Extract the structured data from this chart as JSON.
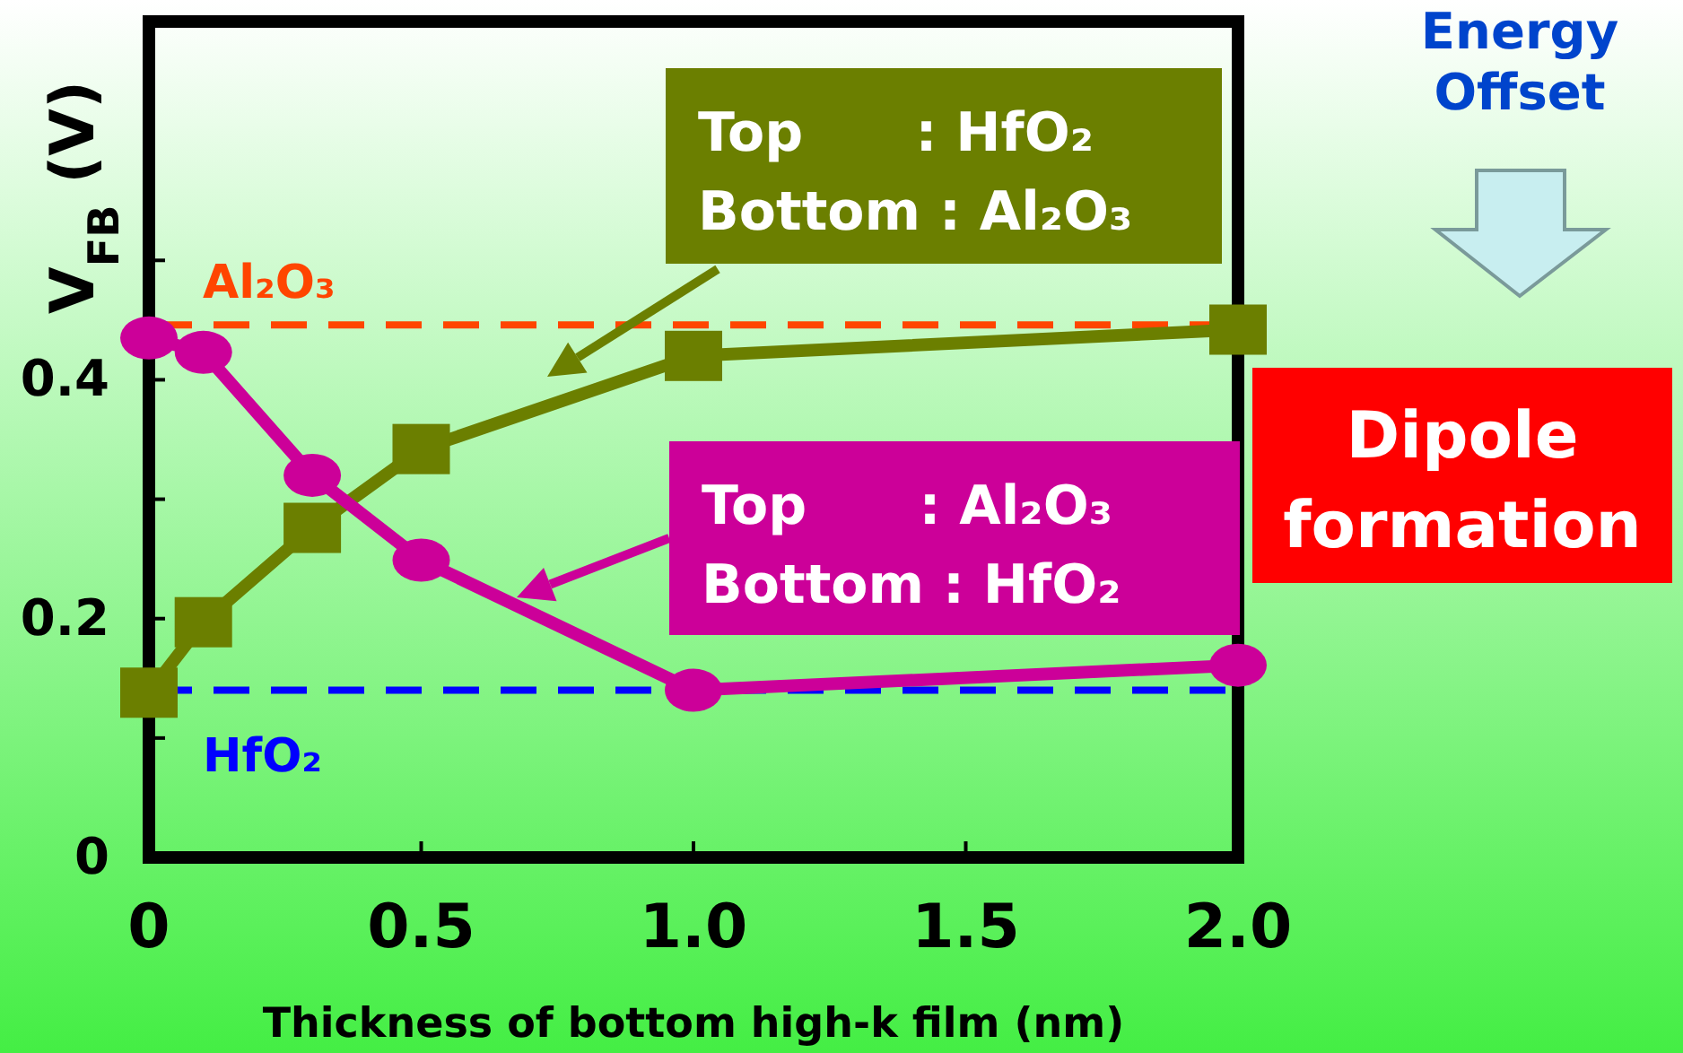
{
  "chart_data": {
    "type": "line",
    "xlabel": "Thickness of bottom high-k film (nm)",
    "ylabel": "V$_{FB}$ (V)",
    "x": [
      0,
      0.1,
      0.3,
      0.5,
      1.0,
      2.0
    ],
    "xlim": [
      0,
      2.0
    ],
    "xticks": [
      0,
      0.5,
      {
        "value": 1.0,
        "label": "1.0"
      },
      1.5,
      {
        "value": 2.0,
        "label": "2.0"
      }
    ],
    "ylim": [
      0,
      0.7
    ],
    "yticks": [
      0,
      {
        "value": 0.1,
        "label": null
      },
      0.2,
      {
        "value": 0.3,
        "label": null
      },
      0.4,
      {
        "value": 0.5,
        "label": null
      }
    ],
    "grid": false,
    "legend": "right",
    "line_style": "solid",
    "series": [
      {
        "name": "Top      : HfO₂\nBottom : Al₂O₃",
        "color": "#6b7f00",
        "marker": "square",
        "values": [
          0.138,
          0.197,
          0.276,
          0.342,
          0.42,
          0.442
        ]
      },
      {
        "name": "Top      : Al₂O₃\nBottom : HfO₂",
        "color": "#cc0099",
        "marker": "circle",
        "values": [
          0.435,
          0.423,
          0.32,
          0.249,
          0.14,
          0.161
        ]
      }
    ],
    "ref_lines": [
      {
        "axis": "y",
        "value": 0.446,
        "label": "Al₂O₃",
        "color": "#ff4500",
        "line_style": "dashed"
      },
      {
        "axis": "y",
        "value": 0.14,
        "label": "HfO₂",
        "color": "#0000ff",
        "line_style": "dashed"
      }
    ],
    "annotations": [
      "Energy\nOffset",
      "Dipole\nformation"
    ]
  }
}
